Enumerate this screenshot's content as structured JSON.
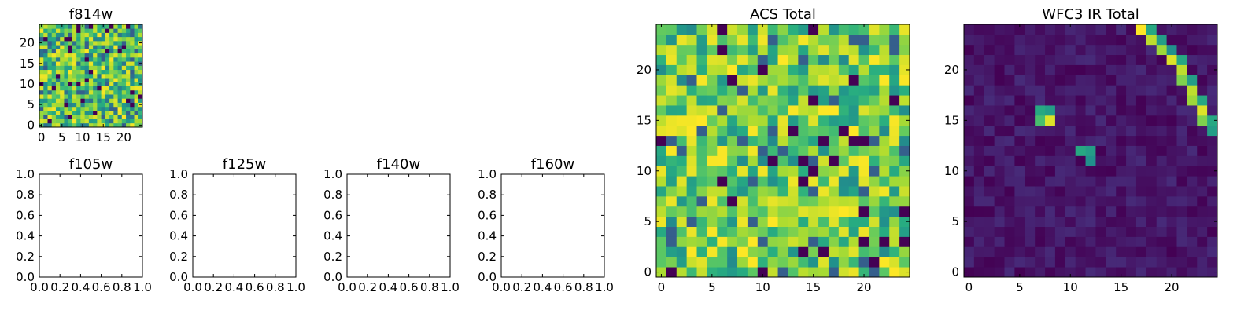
{
  "figure": {
    "background": "#ffffff",
    "colormap": "viridis",
    "colormap_stops": [
      "#440154",
      "#472d7b",
      "#3b528b",
      "#2c728e",
      "#21918c",
      "#28ae80",
      "#5ec962",
      "#addc30",
      "#fde725"
    ]
  },
  "chart_data": [
    {
      "type": "heatmap",
      "title": "f814w",
      "grid_size": 25,
      "xlim": [
        -0.5,
        24.5
      ],
      "ylim": [
        -0.5,
        24.5
      ],
      "x_ticks": [
        0,
        5,
        10,
        15,
        20
      ],
      "y_ticks": [
        0,
        5,
        10,
        15,
        20
      ],
      "pattern": "noise",
      "value_range": [
        0.15,
        1.0
      ],
      "seed": 814
    },
    {
      "type": "heatmap",
      "title": "ACS Total",
      "grid_size": 25,
      "xlim": [
        -0.5,
        24.5
      ],
      "ylim": [
        -0.5,
        24.5
      ],
      "x_ticks": [
        0,
        5,
        10,
        15,
        20
      ],
      "y_ticks": [
        0,
        5,
        10,
        15,
        20
      ],
      "pattern": "noise",
      "value_range": [
        0.3,
        1.0
      ],
      "seed": 1234,
      "dark_cells": [
        [
          1,
          0
        ],
        [
          10,
          0
        ],
        [
          7,
          7
        ],
        [
          13,
          14
        ],
        [
          16,
          13
        ],
        [
          18,
          14
        ],
        [
          7,
          19
        ],
        [
          21,
          1
        ]
      ],
      "bright_cells": [
        [
          4,
          15
        ],
        [
          3,
          14
        ],
        [
          8,
          2
        ],
        [
          9,
          1
        ],
        [
          19,
          14
        ],
        [
          23,
          0
        ],
        [
          12,
          21
        ]
      ]
    },
    {
      "type": "heatmap",
      "title": "WFC3 IR Total",
      "grid_size": 25,
      "xlim": [
        -0.5,
        24.5
      ],
      "ylim": [
        -0.5,
        24.5
      ],
      "x_ticks": [
        0,
        5,
        10,
        15,
        20
      ],
      "y_ticks": [
        0,
        5,
        10,
        15,
        20
      ],
      "pattern": "background",
      "value_range": [
        0.0,
        0.12
      ],
      "seed": 2016,
      "bright_cells": [
        [
          17,
          24,
          1.0
        ],
        [
          18,
          24,
          0.6
        ],
        [
          18,
          23,
          0.9
        ],
        [
          19,
          23,
          0.55
        ],
        [
          19,
          22,
          0.85
        ],
        [
          20,
          22,
          0.5
        ],
        [
          20,
          21,
          0.95
        ],
        [
          21,
          21,
          0.6
        ],
        [
          21,
          20,
          0.9
        ],
        [
          22,
          19,
          0.55
        ],
        [
          21,
          19,
          0.8
        ],
        [
          22,
          18,
          0.9
        ],
        [
          23,
          17,
          0.6
        ],
        [
          22,
          17,
          0.85
        ],
        [
          23,
          16,
          0.95
        ],
        [
          24,
          15,
          0.6
        ],
        [
          23,
          15,
          0.8
        ],
        [
          24,
          14,
          0.55
        ],
        [
          7,
          16,
          0.6
        ],
        [
          8,
          16,
          0.55
        ],
        [
          7,
          15,
          0.7
        ],
        [
          8,
          15,
          0.95
        ],
        [
          11,
          12,
          0.6
        ],
        [
          12,
          12,
          0.55
        ],
        [
          12,
          11,
          0.5
        ]
      ]
    },
    {
      "type": "scatter",
      "title": "f105w",
      "xlim": [
        0.0,
        1.0
      ],
      "ylim": [
        0.0,
        1.0
      ],
      "x_ticks": [
        "0.0",
        "0.2",
        "0.4",
        "0.6",
        "0.8",
        "1.0"
      ],
      "y_ticks": [
        "0.0",
        "0.2",
        "0.4",
        "0.6",
        "0.8",
        "1.0"
      ],
      "series": []
    },
    {
      "type": "scatter",
      "title": "f125w",
      "xlim": [
        0.0,
        1.0
      ],
      "ylim": [
        0.0,
        1.0
      ],
      "x_ticks": [
        "0.0",
        "0.2",
        "0.4",
        "0.6",
        "0.8",
        "1.0"
      ],
      "y_ticks": [
        "0.0",
        "0.2",
        "0.4",
        "0.6",
        "0.8",
        "1.0"
      ],
      "series": []
    },
    {
      "type": "scatter",
      "title": "f140w",
      "xlim": [
        0.0,
        1.0
      ],
      "ylim": [
        0.0,
        1.0
      ],
      "x_ticks": [
        "0.0",
        "0.2",
        "0.4",
        "0.6",
        "0.8",
        "1.0"
      ],
      "y_ticks": [
        "0.0",
        "0.2",
        "0.4",
        "0.6",
        "0.8",
        "1.0"
      ],
      "series": []
    },
    {
      "type": "scatter",
      "title": "f160w",
      "xlim": [
        0.0,
        1.0
      ],
      "ylim": [
        0.0,
        1.0
      ],
      "x_ticks": [
        "0.0",
        "0.2",
        "0.4",
        "0.6",
        "0.8",
        "1.0"
      ],
      "y_ticks": [
        "0.0",
        "0.2",
        "0.4",
        "0.6",
        "0.8",
        "1.0"
      ],
      "series": []
    }
  ]
}
